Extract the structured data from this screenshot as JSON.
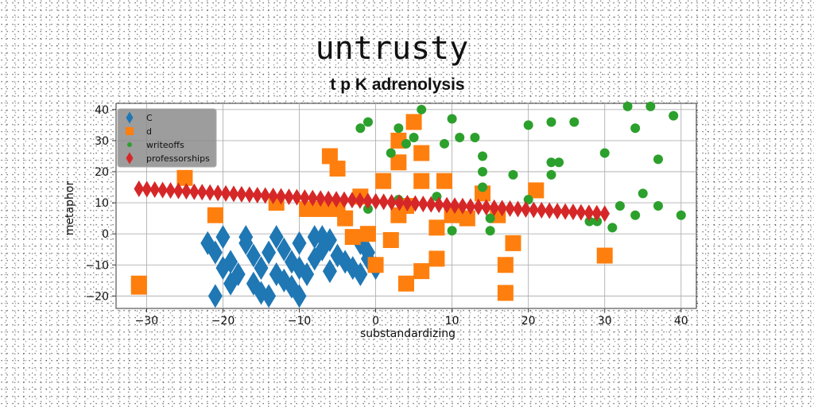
{
  "chart_data": {
    "type": "scatter",
    "title": "untrusty",
    "subtitle": "t p K adrenolysis",
    "xlabel": "substandardizing",
    "ylabel": "metaphor",
    "xlim": [
      -34,
      42
    ],
    "ylim": [
      -24,
      42
    ],
    "xticks": [
      -30,
      -20,
      -10,
      0,
      10,
      20,
      30,
      40
    ],
    "yticks": [
      -20,
      -10,
      0,
      10,
      20,
      30,
      40
    ],
    "grid": true,
    "legend_position": "top-left",
    "series": [
      {
        "name": "C",
        "marker": "thin-diamond",
        "color": "#1f77b4",
        "points": [
          [
            -22,
            -3
          ],
          [
            -20,
            -1
          ],
          [
            -21,
            -6
          ],
          [
            -19,
            -9
          ],
          [
            -20,
            -11
          ],
          [
            -18,
            -13
          ],
          [
            -19,
            -16
          ],
          [
            -21,
            -20
          ],
          [
            -17,
            -3
          ],
          [
            -16,
            -7
          ],
          [
            -15,
            -11
          ],
          [
            -16,
            -16
          ],
          [
            -15,
            -19
          ],
          [
            -14,
            -20
          ],
          [
            -13,
            -13
          ],
          [
            -12,
            -15
          ],
          [
            -11,
            -17
          ],
          [
            -10,
            -20
          ],
          [
            -13,
            -1
          ],
          [
            -12,
            -5
          ],
          [
            -11,
            -9
          ],
          [
            -10,
            -11
          ],
          [
            -9,
            -13
          ],
          [
            -10,
            -3
          ],
          [
            -8,
            -1
          ],
          [
            -7,
            -5
          ],
          [
            -8,
            -8
          ],
          [
            -6,
            -12
          ],
          [
            -5,
            -7
          ],
          [
            -7,
            -1
          ],
          [
            -4,
            -9
          ],
          [
            -3,
            -11
          ],
          [
            -2,
            -13
          ],
          [
            -1,
            -8
          ],
          [
            0,
            -11
          ],
          [
            -2,
            -3
          ],
          [
            -1,
            -6
          ],
          [
            -14,
            -6
          ],
          [
            -17,
            -1
          ],
          [
            -6,
            -2
          ]
        ]
      },
      {
        "name": "d",
        "marker": "square",
        "color": "#ff7f0e",
        "points": [
          [
            -31,
            -16
          ],
          [
            -31,
            -17
          ],
          [
            -25,
            18
          ],
          [
            -21,
            6
          ],
          [
            -6,
            25
          ],
          [
            -5,
            21
          ],
          [
            -2,
            12
          ],
          [
            3,
            23
          ],
          [
            5,
            36
          ],
          [
            3,
            30
          ],
          [
            6,
            26
          ],
          [
            6,
            17
          ],
          [
            4,
            9
          ],
          [
            3,
            6
          ],
          [
            1,
            17
          ],
          [
            -13,
            10
          ],
          [
            -9,
            8
          ],
          [
            -7,
            8
          ],
          [
            -5,
            8
          ],
          [
            -4,
            5
          ],
          [
            -1,
            0
          ],
          [
            -3,
            -1
          ],
          [
            0,
            -10
          ],
          [
            2,
            -2
          ],
          [
            4,
            -16
          ],
          [
            6,
            -12
          ],
          [
            8,
            2
          ],
          [
            8,
            -8
          ],
          [
            9,
            17
          ],
          [
            10,
            6
          ],
          [
            12,
            5
          ],
          [
            14,
            13
          ],
          [
            16,
            6
          ],
          [
            17,
            -10
          ],
          [
            18,
            -3
          ],
          [
            17,
            -19
          ],
          [
            21,
            14
          ],
          [
            30,
            -7
          ]
        ]
      },
      {
        "name": "writeoffs",
        "marker": "circle",
        "color": "#2ca02c",
        "points": [
          [
            -2,
            34
          ],
          [
            -1,
            36
          ],
          [
            3,
            34
          ],
          [
            4,
            29
          ],
          [
            5,
            31
          ],
          [
            6,
            40
          ],
          [
            9,
            29
          ],
          [
            10,
            37
          ],
          [
            11,
            31
          ],
          [
            13,
            31
          ],
          [
            14,
            25
          ],
          [
            14,
            15
          ],
          [
            14,
            20
          ],
          [
            15,
            5
          ],
          [
            18,
            19
          ],
          [
            20,
            35
          ],
          [
            20,
            11
          ],
          [
            23,
            36
          ],
          [
            23,
            19
          ],
          [
            23,
            23
          ],
          [
            24,
            23
          ],
          [
            26,
            36
          ],
          [
            28,
            4
          ],
          [
            29,
            4
          ],
          [
            30,
            26
          ],
          [
            31,
            2
          ],
          [
            32,
            9
          ],
          [
            33,
            41
          ],
          [
            34,
            34
          ],
          [
            34,
            6
          ],
          [
            35,
            13
          ],
          [
            36,
            41
          ],
          [
            37,
            24
          ],
          [
            37,
            9
          ],
          [
            39,
            38
          ],
          [
            40,
            6
          ],
          [
            8,
            12
          ],
          [
            3,
            11
          ],
          [
            -1,
            8
          ],
          [
            10,
            1
          ],
          [
            15,
            1
          ],
          [
            2,
            26
          ]
        ]
      },
      {
        "name": "professorships",
        "marker": "thin-diamond",
        "color": "#d62728",
        "line_start": [
          -31,
          14.5
        ],
        "line_end": [
          30,
          6.5
        ],
        "count": 60
      }
    ]
  }
}
